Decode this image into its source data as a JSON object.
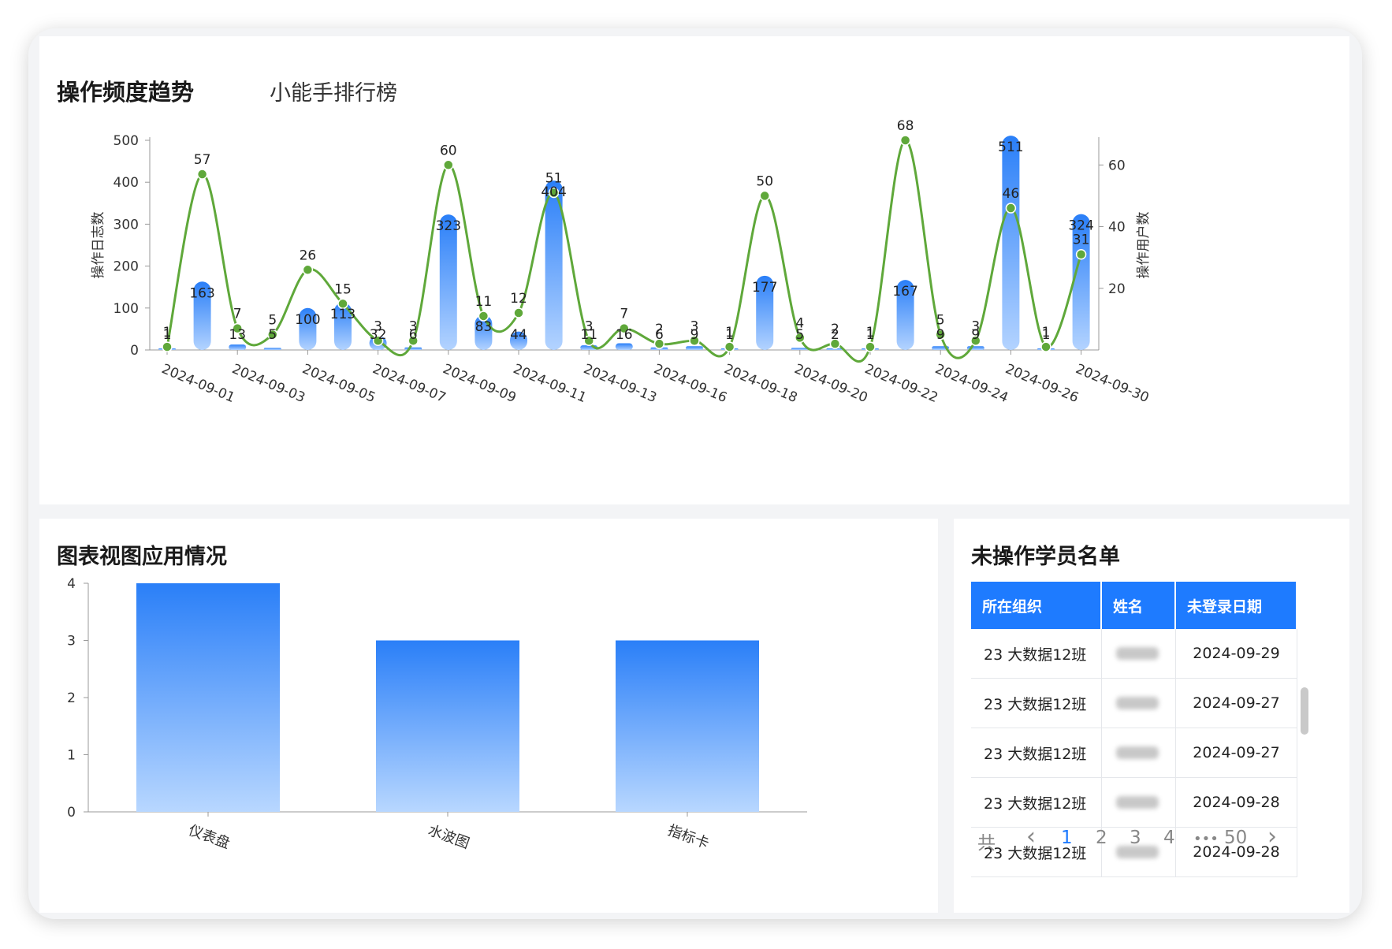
{
  "tabs": {
    "active": "操作频度趋势",
    "other": "小能手排行榜"
  },
  "trend_chart": {
    "ylabel_left": "操作日志数",
    "ylabel_right": "操作用户数",
    "y_left_ticks": [
      "0",
      "100",
      "200",
      "300",
      "400",
      "500"
    ],
    "y_right_ticks": [
      "20",
      "40",
      "60"
    ],
    "x_tick_labels": [
      "2024-09-01",
      "2024-09-03",
      "2024-09-05",
      "2024-09-07",
      "2024-09-09",
      "2024-09-11",
      "2024-09-13",
      "2024-09-16",
      "2024-09-18",
      "2024-09-20",
      "2024-09-22",
      "2024-09-24",
      "2024-09-26",
      "2024-09-30"
    ],
    "bar_color": "#2a7ff8",
    "line_color": "#5fa83a"
  },
  "usage_chart": {
    "title": "图表视图应用情况",
    "y_ticks": [
      "0",
      "1",
      "2",
      "3",
      "4"
    ]
  },
  "chart_data": [
    {
      "type": "bar",
      "series": [
        {
          "name": "操作日志数",
          "values": [
            1,
            163,
            13,
            5,
            100,
            113,
            32,
            6,
            323,
            83,
            44,
            404,
            11,
            16,
            6,
            9,
            1,
            177,
            5,
            2,
            1,
            167,
            9,
            9,
            511,
            1,
            324
          ]
        },
        {
          "name": "操作用户数",
          "values": [
            1,
            57,
            7,
            5,
            26,
            15,
            3,
            3,
            60,
            11,
            12,
            51,
            3,
            7,
            2,
            3,
            1,
            50,
            4,
            2,
            1,
            68,
            5,
            3,
            46,
            1,
            31
          ]
        }
      ],
      "ylabel": "操作日志数",
      "ylim": [
        0,
        500
      ],
      "y2label": "操作用户数",
      "y2lim": [
        0,
        68
      ],
      "x_tick_labels": [
        "2024-09-01",
        "2024-09-03",
        "2024-09-05",
        "2024-09-07",
        "2024-09-09",
        "2024-09-11",
        "2024-09-13",
        "2024-09-16",
        "2024-09-18",
        "2024-09-20",
        "2024-09-22",
        "2024-09-24",
        "2024-09-26",
        "2024-09-30"
      ],
      "grid": false
    },
    {
      "type": "bar",
      "categories": [
        "仪表盘",
        "水波图",
        "指标卡"
      ],
      "values": [
        4,
        3,
        3
      ],
      "ylim": [
        0,
        4
      ],
      "grid": false
    }
  ],
  "absent_list": {
    "title": "未操作学员名单",
    "columns": [
      "所在组织",
      "姓名",
      "未登录日期"
    ],
    "rows": [
      {
        "org": "23 大数据12班",
        "date": "2024-09-29"
      },
      {
        "org": "23 大数据12班",
        "date": "2024-09-27"
      },
      {
        "org": "23 大数据12班",
        "date": "2024-09-27"
      },
      {
        "org": "23 大数据12班",
        "date": "2024-09-28"
      },
      {
        "org": "23 大数据12班",
        "date": "2024-09-28"
      }
    ]
  },
  "pagination": {
    "total_prefix": "共",
    "prev": "‹",
    "pages": [
      "1",
      "2",
      "3",
      "4"
    ],
    "ellipsis": "•••",
    "last": "50",
    "next": "›",
    "current": "1"
  }
}
